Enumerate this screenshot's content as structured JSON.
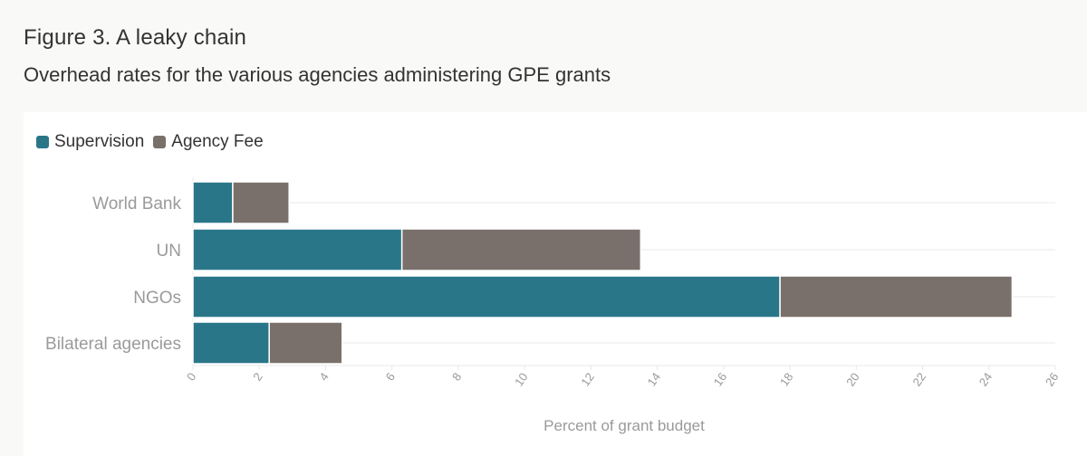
{
  "figure": {
    "title": "Figure 3. A leaky chain",
    "subtitle": "Overhead rates for the various agencies administering GPE grants"
  },
  "colors": {
    "supervision": "#2a7689",
    "agency_fee": "#7a706b",
    "grid": "#e8e8e8",
    "label": "#9a9a9a"
  },
  "chart_data": {
    "type": "bar",
    "orientation": "horizontal",
    "stacked": true,
    "categories": [
      "World Bank",
      "UN",
      "NGOs",
      "Bilateral agencies"
    ],
    "series": [
      {
        "name": "Supervision",
        "values": [
          1.2,
          6.3,
          17.7,
          2.3
        ]
      },
      {
        "name": "Agency Fee",
        "values": [
          1.7,
          7.2,
          7.0,
          2.2
        ]
      }
    ],
    "xlabel": "Percent of grant budget",
    "ylabel": "",
    "xlim": [
      0,
      26
    ],
    "xticks": [
      "0",
      "2",
      "4",
      "6",
      "8",
      "10",
      "12",
      "14",
      "16",
      "18",
      "20",
      "22",
      "24",
      "26"
    ],
    "grid": true,
    "legend_position": "top-left"
  }
}
